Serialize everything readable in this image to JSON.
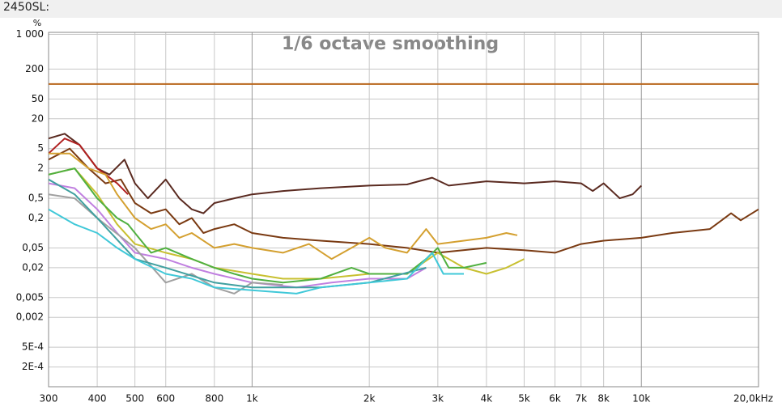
{
  "header": "2450SL:",
  "chart_data": {
    "type": "line",
    "title": "1/6 octave smoothing",
    "ylabel": "%",
    "xscale": "log",
    "yscale": "log",
    "grid": true,
    "xlim": [
      300,
      20000
    ],
    "ylim": [
      8e-05,
      1100
    ],
    "xticks": [
      300,
      400,
      500,
      600,
      800,
      {
        "value": 1000,
        "label": "1k"
      },
      {
        "value": 2000,
        "label": "2k"
      },
      {
        "value": 3000,
        "label": "3k"
      },
      {
        "value": 4000,
        "label": "4k"
      },
      {
        "value": 5000,
        "label": "5k"
      },
      {
        "value": 6000,
        "label": "6k"
      },
      {
        "value": 7000,
        "label": "7k"
      },
      {
        "value": 8000,
        "label": "8k"
      },
      {
        "value": 10000,
        "label": "10k"
      },
      {
        "value": 20000,
        "label": "20,0kHz"
      }
    ],
    "yticks": [
      {
        "value": 1000,
        "label": "1 000"
      },
      200,
      50,
      20,
      5,
      2,
      {
        "value": 0.5,
        "label": "0,5"
      },
      {
        "value": 0.2,
        "label": "0,2"
      },
      {
        "value": 0.05,
        "label": "0,05"
      },
      {
        "value": 0.02,
        "label": "0,02"
      },
      {
        "value": 0.005,
        "label": "0,005"
      },
      {
        "value": 0.002,
        "label": "0,002"
      },
      {
        "value": 0.0005,
        "label": "5E-4"
      },
      {
        "value": 0.0002,
        "label": "2E-4"
      }
    ],
    "series": [
      {
        "color": "#b8641a",
        "x": [
          300,
          20000
        ],
        "values": [
          100,
          100
        ]
      },
      {
        "color": "#5a2a20",
        "x": [
          300,
          330,
          360,
          400,
          430,
          470,
          500,
          540,
          600,
          650,
          700,
          750,
          800,
          900,
          1000,
          1200,
          1500,
          2000,
          2500,
          2900,
          3200,
          4000,
          5000,
          6000,
          7000,
          7500,
          8000,
          8800,
          9500,
          10000
        ],
        "values": [
          8,
          10,
          6,
          2,
          1.5,
          3,
          1,
          0.5,
          1.2,
          0.5,
          0.3,
          0.25,
          0.4,
          0.5,
          0.6,
          0.7,
          0.8,
          0.9,
          0.95,
          1.3,
          0.9,
          1.1,
          1.0,
          1.1,
          1.0,
          0.7,
          1.0,
          0.5,
          0.6,
          0.9
        ]
      },
      {
        "color": "#7a3a12",
        "x": [
          300,
          340,
          380,
          420,
          460,
          500,
          550,
          600,
          650,
          700,
          750,
          800,
          900,
          1000,
          1200,
          1500,
          2000,
          2500,
          3000,
          4000,
          5000,
          6000,
          7000,
          8000,
          10000,
          12000,
          15000,
          17000,
          18000,
          20000
        ],
        "values": [
          3,
          5,
          2,
          1.0,
          1.2,
          0.4,
          0.25,
          0.3,
          0.15,
          0.2,
          0.1,
          0.12,
          0.15,
          0.1,
          0.08,
          0.07,
          0.06,
          0.05,
          0.04,
          0.05,
          0.045,
          0.04,
          0.06,
          0.07,
          0.08,
          0.1,
          0.12,
          0.25,
          0.18,
          0.3
        ]
      },
      {
        "color": "#b02020",
        "x": [
          300,
          330,
          360,
          400,
          450,
          480
        ],
        "values": [
          4,
          8,
          6,
          2,
          1.0,
          0.6
        ]
      },
      {
        "color": "#d4a030",
        "x": [
          300,
          340,
          380,
          420,
          450,
          500,
          550,
          600,
          650,
          700,
          800,
          900,
          1000,
          1200,
          1400,
          1600,
          1800,
          2000,
          2200,
          2500,
          2800,
          3000,
          3500,
          4000,
          4500,
          4800
        ],
        "values": [
          4,
          4,
          2,
          1.5,
          0.6,
          0.2,
          0.12,
          0.15,
          0.08,
          0.1,
          0.05,
          0.06,
          0.05,
          0.04,
          0.06,
          0.03,
          0.05,
          0.08,
          0.05,
          0.04,
          0.12,
          0.06,
          0.07,
          0.08,
          0.1,
          0.09
        ]
      },
      {
        "color": "#c8c030",
        "x": [
          300,
          350,
          400,
          450,
          500,
          600,
          700,
          800,
          1000,
          1200,
          1500,
          2000,
          2500,
          3000,
          3500,
          4000,
          4500,
          5000
        ],
        "values": [
          1.5,
          2,
          0.6,
          0.15,
          0.06,
          0.04,
          0.03,
          0.02,
          0.015,
          0.012,
          0.012,
          0.015,
          0.015,
          0.04,
          0.02,
          0.015,
          0.02,
          0.03
        ]
      },
      {
        "color": "#50b040",
        "x": [
          300,
          350,
          400,
          450,
          480,
          500,
          550,
          600,
          700,
          800,
          900,
          1000,
          1200,
          1500,
          1800,
          2000,
          2500,
          2800,
          3000,
          3200,
          3500,
          4000
        ],
        "values": [
          1.5,
          2,
          0.5,
          0.2,
          0.15,
          0.1,
          0.04,
          0.05,
          0.03,
          0.02,
          0.015,
          0.012,
          0.01,
          0.012,
          0.02,
          0.015,
          0.015,
          0.03,
          0.05,
          0.02,
          0.02,
          0.025
        ]
      },
      {
        "color": "#c080e0",
        "x": [
          300,
          350,
          400,
          450,
          500,
          600,
          700,
          800,
          1000,
          1300,
          1600,
          2000,
          2500,
          2800
        ],
        "values": [
          1.0,
          0.8,
          0.3,
          0.1,
          0.04,
          0.03,
          0.02,
          0.015,
          0.01,
          0.008,
          0.01,
          0.012,
          0.012,
          0.02
        ]
      },
      {
        "color": "#a0a0a0",
        "x": [
          300,
          350,
          400,
          500,
          600,
          700,
          800,
          900,
          1000,
          1200
        ],
        "values": [
          0.6,
          0.5,
          0.2,
          0.05,
          0.01,
          0.015,
          0.008,
          0.006,
          0.01,
          0.009
        ]
      },
      {
        "color": "#40a0a0",
        "x": [
          300,
          350,
          400,
          500,
          600,
          800,
          1000,
          1500,
          2000,
          2800
        ],
        "values": [
          1.2,
          0.6,
          0.2,
          0.03,
          0.02,
          0.01,
          0.008,
          0.008,
          0.01,
          0.02
        ]
      },
      {
        "color": "#40c8d8",
        "x": [
          300,
          350,
          400,
          450,
          500,
          600,
          700,
          800,
          1000,
          1300,
          1500,
          2000,
          2500,
          2900,
          3100,
          3500
        ],
        "values": [
          0.3,
          0.15,
          0.1,
          0.05,
          0.03,
          0.015,
          0.012,
          0.008,
          0.007,
          0.006,
          0.008,
          0.01,
          0.012,
          0.04,
          0.015,
          0.015
        ]
      }
    ]
  }
}
